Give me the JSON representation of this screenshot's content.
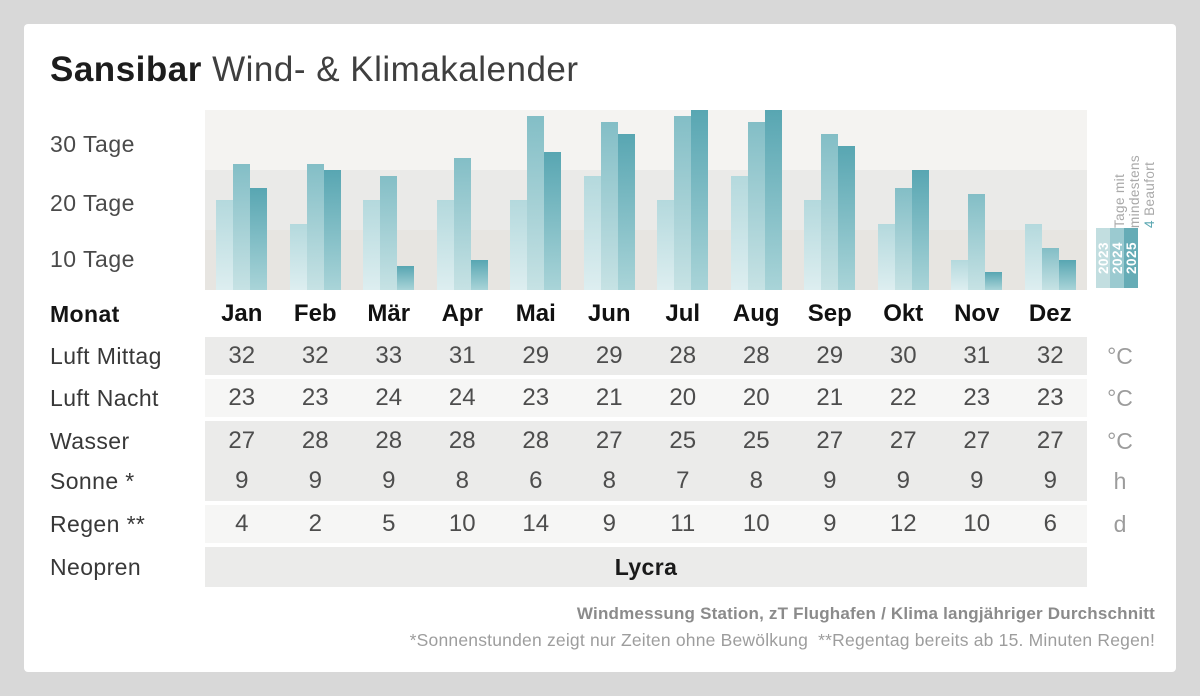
{
  "title": {
    "brand": "Sansibar",
    "rest": " Wind- & Klimakalender"
  },
  "chart_data": {
    "type": "bar",
    "title": "Tage mit mindestens 4 Beaufort",
    "categories": [
      "Jan",
      "Feb",
      "Mär",
      "Apr",
      "Mai",
      "Jun",
      "Jul",
      "Aug",
      "Sep",
      "Okt",
      "Nov",
      "Dez"
    ],
    "series": [
      {
        "name": "2023",
        "color_top": "#b4d9dd",
        "color_bottom": "#ddeef0",
        "values": [
          15,
          11,
          15,
          15,
          15,
          19,
          15,
          19,
          15,
          11,
          5,
          11
        ]
      },
      {
        "name": "2024",
        "color_top": "#83bec6",
        "color_bottom": "#c6e2e4",
        "values": [
          21,
          21,
          19,
          22,
          29,
          28,
          29,
          28,
          26,
          17,
          16,
          7
        ]
      },
      {
        "name": "2025",
        "color_top": "#58a6b2",
        "color_bottom": "#a9d4d8",
        "values": [
          17,
          20,
          4,
          5,
          23,
          26,
          30,
          30,
          24,
          20,
          3,
          5
        ]
      }
    ],
    "y_ticks": [
      "30 Tage",
      "20 Tage",
      "10 Tage"
    ],
    "ylim": [
      0,
      30
    ],
    "ylabel": "Tage",
    "legend_position": "right"
  },
  "legend": {
    "line1": "Tage mit",
    "line2": "mindestens",
    "line3_highlight": "4",
    "line3_rest": " Beaufort",
    "years": [
      {
        "label": "2023",
        "color": "#c2dee0"
      },
      {
        "label": "2024",
        "color": "#9bcad0"
      },
      {
        "label": "2025",
        "color": "#66acb6"
      }
    ]
  },
  "table": {
    "header_label": "Monat",
    "rows": [
      {
        "label": "Luft Mittag",
        "values": [
          "32",
          "32",
          "33",
          "31",
          "29",
          "29",
          "28",
          "28",
          "29",
          "30",
          "31",
          "32"
        ],
        "unit": "°C",
        "shade": "dark"
      },
      {
        "label": "Luft Nacht",
        "values": [
          "23",
          "23",
          "24",
          "24",
          "23",
          "21",
          "20",
          "20",
          "21",
          "22",
          "23",
          "23"
        ],
        "unit": "°C",
        "shade": "light"
      },
      {
        "label": "Wasser",
        "values": [
          "27",
          "28",
          "28",
          "28",
          "28",
          "27",
          "25",
          "25",
          "27",
          "27",
          "27",
          "27"
        ],
        "unit": "°C",
        "shade": "dark"
      },
      {
        "label": "Sonne *",
        "values": [
          "9",
          "9",
          "9",
          "8",
          "6",
          "8",
          "7",
          "8",
          "9",
          "9",
          "9",
          "9"
        ],
        "unit": "h",
        "shade": "dark"
      },
      {
        "label": "Regen **",
        "values": [
          "4",
          "2",
          "5",
          "10",
          "14",
          "9",
          "11",
          "10",
          "9",
          "12",
          "10",
          "6"
        ],
        "unit": "d",
        "shade": "light"
      },
      {
        "label": "Neopren",
        "merged_value": "Lycra",
        "unit": "",
        "shade": "dark"
      }
    ]
  },
  "footer": {
    "line1": "Windmessung Station, zT Flughafen / Klima langjähriger Durchschnitt",
    "line2": "*Sonnenstunden zeigt nur Zeiten ohne Bewölkung  **Regentag bereits ab 15. Minuten Regen!"
  }
}
